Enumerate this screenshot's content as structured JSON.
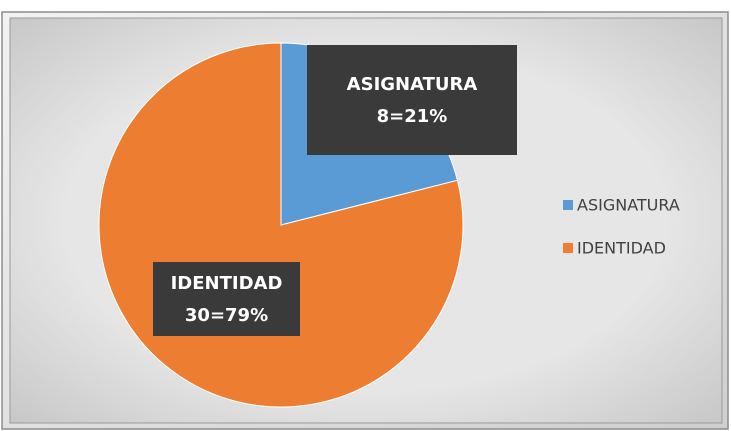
{
  "chart_data": {
    "type": "pie",
    "categories": [
      "ASIGNATURA",
      "IDENTIDAD"
    ],
    "values": [
      8,
      30
    ],
    "value_labels": [
      "8=21%",
      "30=79%"
    ],
    "colors": [
      "#5b9bd5",
      "#ed7d31"
    ],
    "legend": "right"
  }
}
